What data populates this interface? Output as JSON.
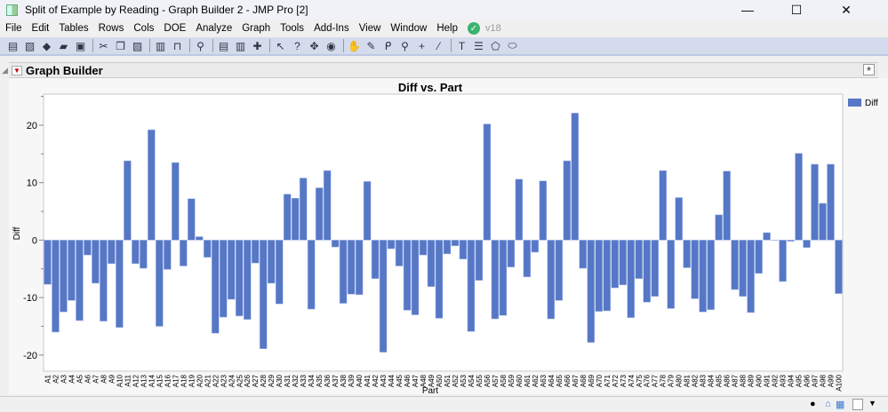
{
  "window": {
    "title": "Split of Example by Reading - Graph Builder 2 - JMP Pro [2]",
    "minimize": "—",
    "maximize": "☐",
    "close": "✕"
  },
  "menu": [
    "File",
    "Edit",
    "Tables",
    "Rows",
    "Cols",
    "DOE",
    "Analyze",
    "Graph",
    "Tools",
    "Add-Ins",
    "View",
    "Window",
    "Help"
  ],
  "version": "v18",
  "toolbar_icons": [
    "new-table-icon",
    "new-script-icon",
    "python-icon",
    "open-icon",
    "save-icon",
    "|",
    "cut-icon",
    "copy-icon",
    "paste-icon",
    "|",
    "script-icon",
    "lock-icon",
    "|",
    "search-icon",
    "|",
    "report-icon",
    "column-icon",
    "add-icon",
    "|",
    "arrow-icon",
    "help-icon",
    "crosshair-icon",
    "target-icon",
    "|",
    "hand-icon",
    "brush-icon",
    "lasso-icon",
    "magnifier-icon",
    "plus-icon",
    "pencil-icon",
    "|",
    "textbox-icon",
    "lines-icon",
    "polygon-icon",
    "ellipse-icon"
  ],
  "panel": {
    "title": "Graph Builder"
  },
  "colors": {
    "bar": "#5677c6",
    "toolbar": "#d3dbec"
  },
  "chart_data": {
    "type": "bar",
    "title": "Diff vs. Part",
    "xlabel": "Part",
    "ylabel": "Diff",
    "ylim": [
      -22.8,
      25.4
    ],
    "yticks": [
      -20,
      -10,
      0,
      10,
      20
    ],
    "grid": false,
    "legend": {
      "position": "right",
      "entries": [
        "Diff"
      ]
    },
    "categories": [
      "A1",
      "A2",
      "A3",
      "A4",
      "A5",
      "A6",
      "A7",
      "A8",
      "A9",
      "A10",
      "A11",
      "A12",
      "A13",
      "A14",
      "A15",
      "A16",
      "A17",
      "A18",
      "A19",
      "A20",
      "A21",
      "A22",
      "A23",
      "A24",
      "A25",
      "A26",
      "A27",
      "A28",
      "A29",
      "A30",
      "A31",
      "A32",
      "A33",
      "A34",
      "A35",
      "A36",
      "A37",
      "A38",
      "A39",
      "A40",
      "A41",
      "A42",
      "A43",
      "A44",
      "A45",
      "A46",
      "A47",
      "A48",
      "A49",
      "A50",
      "A51",
      "A52",
      "A53",
      "A54",
      "A55",
      "A56",
      "A57",
      "A58",
      "A59",
      "A60",
      "A61",
      "A62",
      "A63",
      "A64",
      "A65",
      "A66",
      "A67",
      "A68",
      "A69",
      "A70",
      "A71",
      "A72",
      "A73",
      "A74",
      "A75",
      "A76",
      "A77",
      "A78",
      "A79",
      "A80",
      "A81",
      "A82",
      "A83",
      "A84",
      "A85",
      "A86",
      "A87",
      "A88",
      "A89",
      "A90",
      "A91",
      "A92",
      "A93",
      "A94",
      "A95",
      "A96",
      "A97",
      "A98",
      "A99",
      "A100"
    ],
    "series": [
      {
        "name": "Diff",
        "values": [
          -7.7,
          -16.0,
          -12.5,
          -10.5,
          -14.0,
          -2.6,
          -7.5,
          -14.1,
          -4.1,
          -15.2,
          13.8,
          -4.1,
          -4.9,
          19.2,
          -15.0,
          -5.1,
          13.5,
          -4.5,
          7.2,
          0.6,
          -3.0,
          -16.2,
          -13.4,
          -10.3,
          -13.2,
          -13.8,
          -4.0,
          -18.9,
          -7.5,
          -11.1,
          8.0,
          7.3,
          10.8,
          -12.0,
          9.1,
          12.1,
          -1.2,
          -11.0,
          -9.4,
          -9.5,
          10.2,
          -6.7,
          -19.5,
          -1.5,
          -4.5,
          -12.2,
          -13.0,
          -2.6,
          -8.1,
          -13.6,
          -2.4,
          -1.0,
          -3.3,
          -15.9,
          -7.0,
          20.2,
          -13.7,
          -13.1,
          -4.7,
          10.6,
          -6.4,
          -2.1,
          10.3,
          -13.7,
          -10.5,
          13.8,
          22.1,
          -4.9,
          -17.8,
          -12.4,
          -12.3,
          -8.3,
          -7.8,
          -13.5,
          -6.7,
          -10.8,
          -9.8,
          12.1,
          -11.9,
          7.4,
          -4.8,
          -10.2,
          -12.5,
          -12.1,
          4.4,
          12.0,
          -8.6,
          -9.8,
          -12.6,
          -5.8,
          1.3,
          0.0,
          -7.2,
          -0.2,
          15.1,
          -1.3,
          13.2,
          6.4,
          13.2,
          -9.3
        ]
      }
    ]
  },
  "status_icons": [
    "info-icon",
    "home-icon",
    "window-icon",
    "blank-icon",
    "dropdown-icon"
  ]
}
